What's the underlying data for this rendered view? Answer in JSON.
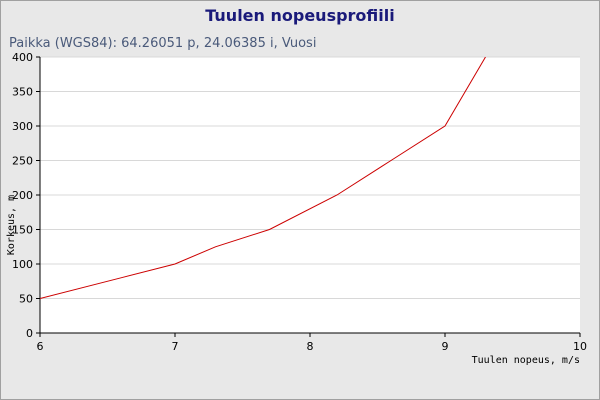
{
  "chart_data": {
    "type": "line",
    "title": "Tuulen nopeusprofiili",
    "subtitle": "Paikka (WGS84): 64.26051 p, 24.06385 i, Vuosi",
    "xlabel": "Tuulen nopeus, m/s",
    "ylabel": "Korkeus, m",
    "xlim": [
      6,
      10
    ],
    "ylim": [
      0,
      400
    ],
    "xticks": [
      6,
      7,
      8,
      9,
      10
    ],
    "yticks": [
      0,
      50,
      100,
      150,
      200,
      250,
      300,
      350,
      400
    ],
    "grid": true,
    "series": [
      {
        "color": "#cc0000",
        "x": [
          6.0,
          6.6,
          7.0,
          7.3,
          7.7,
          8.2,
          8.6,
          9.0,
          9.3
        ],
        "y": [
          50,
          80,
          100,
          125,
          150,
          200,
          250,
          300,
          400
        ]
      }
    ]
  }
}
